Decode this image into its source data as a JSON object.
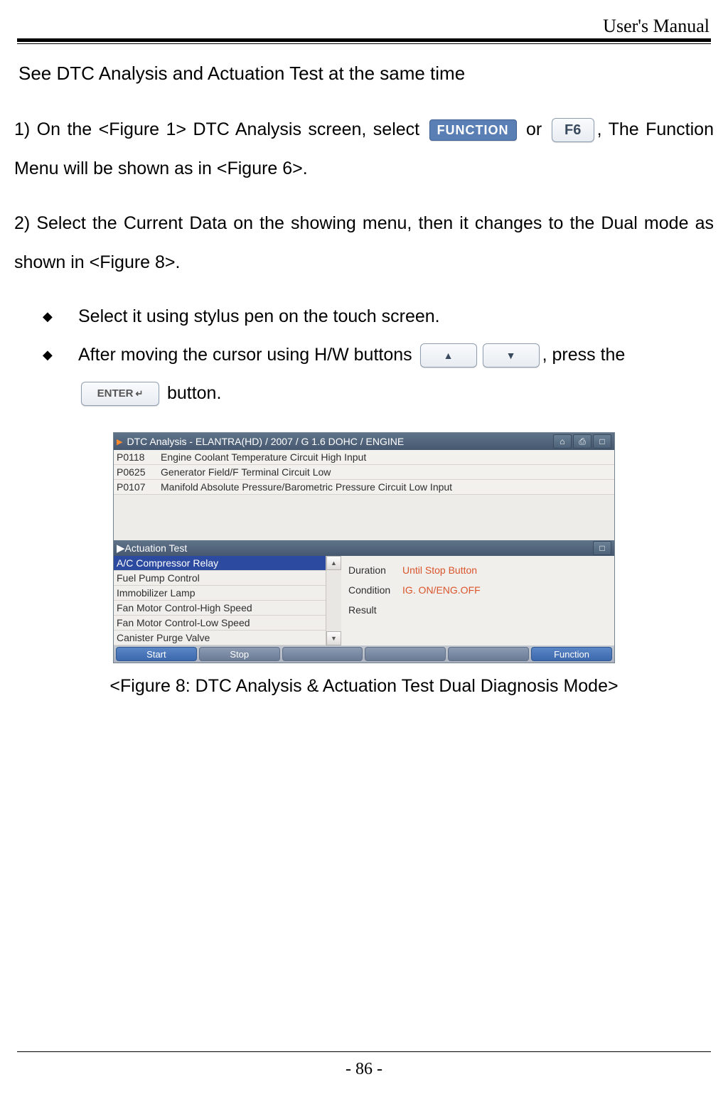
{
  "header": {
    "doc_title": "User's Manual"
  },
  "section_title": "See DTC Analysis and Actuation Test at the same time",
  "steps": {
    "s1a": "1) On the <Figure 1> DTC Analysis screen, select ",
    "s1_function_label": "FUNCTION",
    "s1_or": " or ",
    "s1_f6": "F6",
    "s1b": ", The Function Menu will be shown as in <Figure 6>.",
    "s2": "2) Select the Current Data on the showing menu, then it changes to the Dual mode as shown in <Figure 8>."
  },
  "bullets": {
    "b1": "Select it using stylus pen on the touch screen.",
    "b2a": "After moving the cursor using H/W buttons ",
    "b2b": ", press the ",
    "b2_enter": "ENTER",
    "b2c": " button."
  },
  "screenshot": {
    "title": "DTC Analysis - ELANTRA(HD) / 2007 / G 1.6 DOHC / ENGINE",
    "dtc_codes": [
      {
        "code": "P0118",
        "desc": "Engine Coolant Temperature Circuit High Input"
      },
      {
        "code": "P0625",
        "desc": "Generator Field/F Terminal Circuit Low"
      },
      {
        "code": "P0107",
        "desc": "Manifold Absolute Pressure/Barometric Pressure Circuit Low Input"
      }
    ],
    "act_title": "Actuation Test",
    "act_items": [
      "A/C Compressor Relay",
      "Fuel Pump Control",
      "Immobilizer Lamp",
      "Fan Motor Control-High Speed",
      "Fan Motor Control-Low Speed",
      "Canister Purge Valve"
    ],
    "info": {
      "duration_label": "Duration",
      "duration_value": "Until Stop Button",
      "condition_label": "Condition",
      "condition_value": "IG. ON/ENG.OFF",
      "result_label": "Result",
      "result_value": ""
    },
    "footer": {
      "start": "Start",
      "stop": "Stop",
      "function": "Function"
    },
    "colors": {
      "titlebar_bg": "#516479",
      "selected_bg": "#2b4aa0",
      "info_value_color": "#d9552b",
      "footer_blue": "#4672b6"
    }
  },
  "figure_caption": "<Figure 8: DTC Analysis & Actuation Test Dual Diagnosis Mode>",
  "page_number": "- 86 -"
}
